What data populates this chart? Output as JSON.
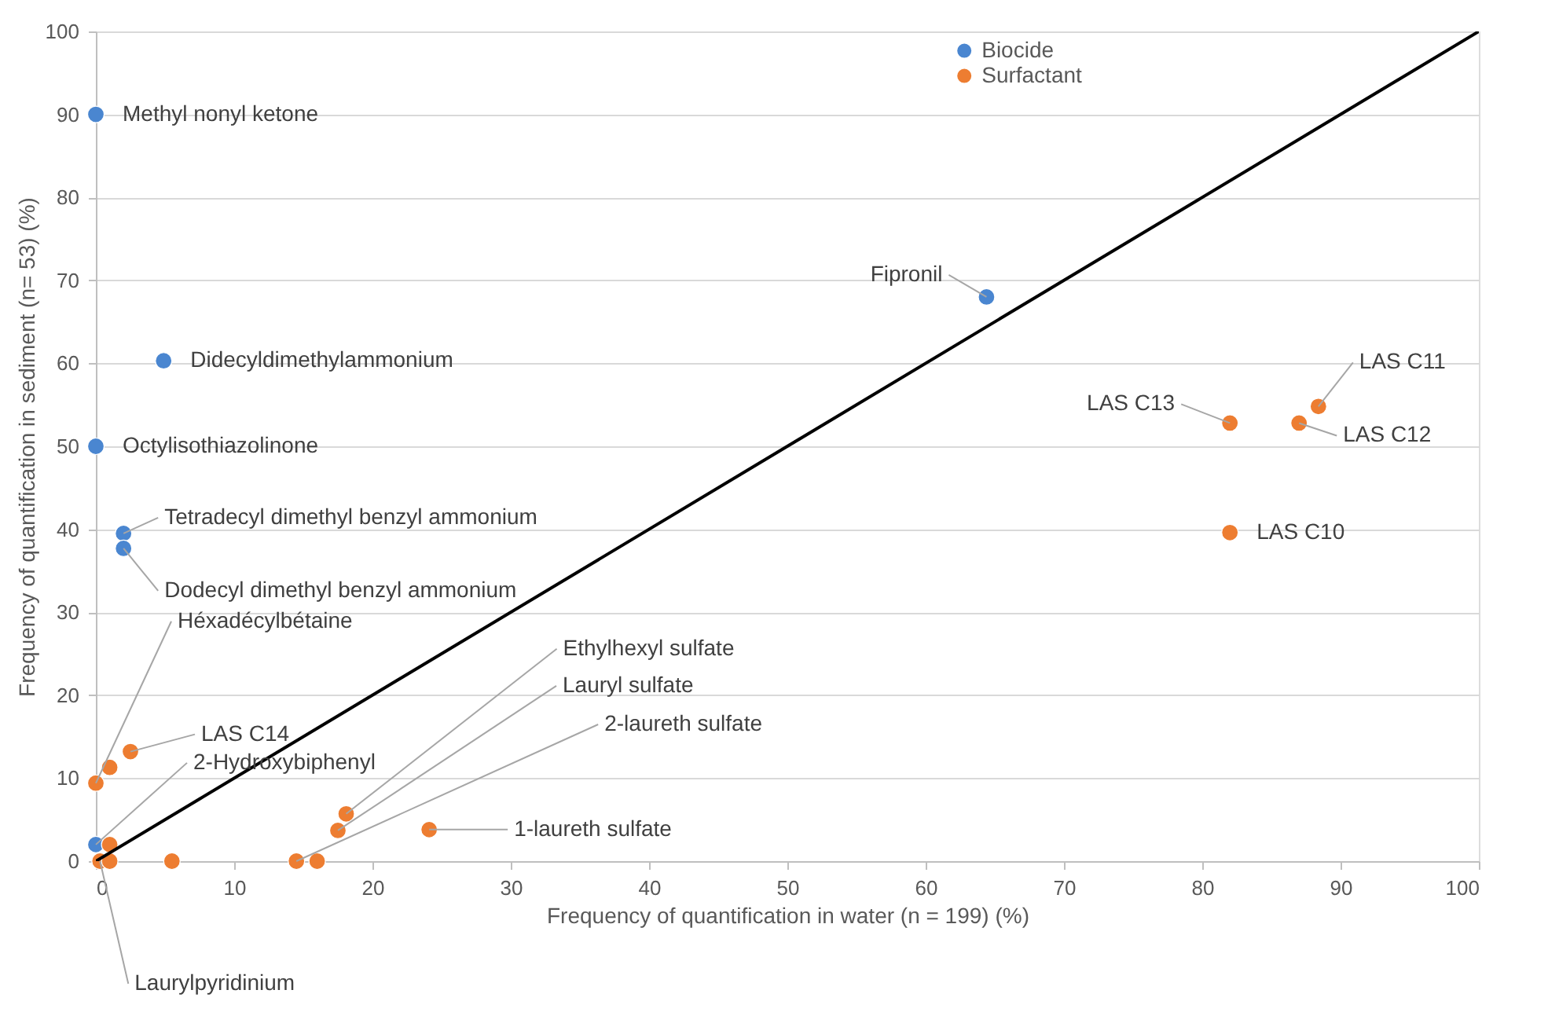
{
  "chart_data": {
    "type": "scatter",
    "xlabel": "Frequency of quantification in water (n = 199) (%)",
    "ylabel": "Frequency of quantification in sediment (n= 53) (%)",
    "xlim": [
      0,
      100
    ],
    "ylim": [
      0,
      100
    ],
    "xticks": [
      0,
      10,
      20,
      30,
      40,
      50,
      60,
      70,
      80,
      90,
      100
    ],
    "yticks": [
      0,
      10,
      20,
      30,
      40,
      50,
      60,
      70,
      80,
      90,
      100
    ],
    "grid": "y",
    "legend": "top right",
    "marker": "circle",
    "series": [
      {
        "name": "Biocide",
        "color": "#4a86d0",
        "x": [
          0,
          4.9,
          0,
          2,
          2,
          64.4,
          0
        ],
        "values": [
          90,
          60.3,
          50,
          39.5,
          37.7,
          68,
          2
        ]
      },
      {
        "name": "Surfactant",
        "color": "#ed7d31",
        "x": [
          0,
          1,
          2.5,
          1,
          0.3,
          1,
          5.5,
          14.5,
          16,
          17.5,
          18.1,
          24.1,
          82,
          87,
          88.4,
          82
        ],
        "values": [
          9.4,
          11.3,
          13.2,
          2,
          0,
          0,
          0,
          0,
          0,
          3.7,
          5.7,
          3.8,
          52.8,
          52.8,
          54.8,
          39.6
        ]
      },
      {
        "type": "line",
        "color": "#000000",
        "line_style": "solid",
        "marker": "none",
        "x": [
          0,
          100
        ],
        "values": [
          0,
          100
        ]
      }
    ],
    "annotations": [
      {
        "text": "Methyl nonyl ketone",
        "x": 0,
        "y": 90
      },
      {
        "text": "Didecyldimethylammonium",
        "x": 4.9,
        "y": 60.3
      },
      {
        "text": "Octylisothiazolinone",
        "x": 0,
        "y": 50
      },
      {
        "text": "Tetradecyl dimethyl  benzyl ammonium",
        "x": 2,
        "y": 39.5
      },
      {
        "text": "Dodecyl dimethyl benzyl ammonium",
        "x": 2,
        "y": 37.7
      },
      {
        "text": "Fipronil",
        "x": 64.4,
        "y": 68
      },
      {
        "text": "LAS C13",
        "x": 82,
        "y": 52.8
      },
      {
        "text": "LAS C12",
        "x": 87,
        "y": 52.8
      },
      {
        "text": "LAS C11",
        "x": 88.4,
        "y": 54.8
      },
      {
        "text": "LAS C10",
        "x": 82,
        "y": 39.6
      },
      {
        "text": "Héxadécylbétaine",
        "x": 0,
        "y": 9.4
      },
      {
        "text": "LAS C14",
        "x": 2.5,
        "y": 13.2
      },
      {
        "text": "2-Hydroxybiphenyl",
        "x": 0,
        "y": 2
      },
      {
        "text": "Ethylhexyl sulfate",
        "x": 18.1,
        "y": 5.7
      },
      {
        "text": "Lauryl sulfate",
        "x": 17.5,
        "y": 3.7
      },
      {
        "text": "2-laureth sulfate",
        "x": 14.5,
        "y": 0
      },
      {
        "text": "1-laureth sulfate",
        "x": 24.1,
        "y": 3.8
      },
      {
        "text": "Laurylpyridinium",
        "x": 0.3,
        "y": 0
      }
    ]
  }
}
